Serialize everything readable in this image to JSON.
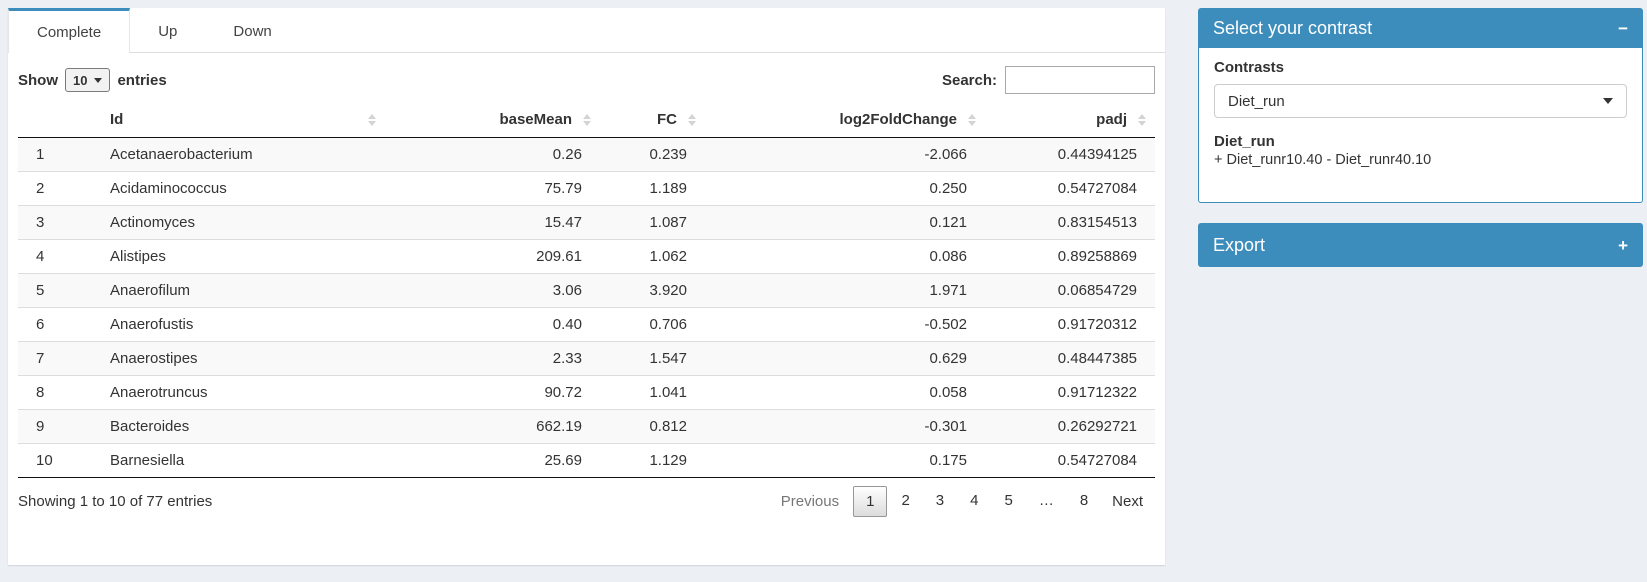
{
  "colors": {
    "accent": "#3d8dbc",
    "page_bg": "#ecf0f5"
  },
  "tabs": [
    {
      "label": "Complete",
      "active": true
    },
    {
      "label": "Up",
      "active": false
    },
    {
      "label": "Down",
      "active": false
    }
  ],
  "table_controls": {
    "show_label": "Show",
    "page_length": "10",
    "entries_label": "entries",
    "search_label": "Search:",
    "search_value": ""
  },
  "table": {
    "columns": [
      {
        "name": "row-number",
        "label": "",
        "align": "c-rownum"
      },
      {
        "name": "id",
        "label": "Id",
        "align": "c-id"
      },
      {
        "name": "basemean",
        "label": "baseMean",
        "align": "c-num"
      },
      {
        "name": "fc",
        "label": "FC",
        "align": "c-num"
      },
      {
        "name": "log2foldchange",
        "label": "log2FoldChange",
        "align": "c-num"
      },
      {
        "name": "padj",
        "label": "padj",
        "align": "c-num"
      }
    ],
    "rows": [
      [
        "1",
        "Acetanaerobacterium",
        "0.26",
        "0.239",
        "-2.066",
        "0.44394125"
      ],
      [
        "2",
        "Acidaminococcus",
        "75.79",
        "1.189",
        "0.250",
        "0.54727084"
      ],
      [
        "3",
        "Actinomyces",
        "15.47",
        "1.087",
        "0.121",
        "0.83154513"
      ],
      [
        "4",
        "Alistipes",
        "209.61",
        "1.062",
        "0.086",
        "0.89258869"
      ],
      [
        "5",
        "Anaerofilum",
        "3.06",
        "3.920",
        "1.971",
        "0.06854729"
      ],
      [
        "6",
        "Anaerofustis",
        "0.40",
        "0.706",
        "-0.502",
        "0.91720312"
      ],
      [
        "7",
        "Anaerostipes",
        "2.33",
        "1.547",
        "0.629",
        "0.48447385"
      ],
      [
        "8",
        "Anaerotruncus",
        "90.72",
        "1.041",
        "0.058",
        "0.91712322"
      ],
      [
        "9",
        "Bacteroides",
        "662.19",
        "0.812",
        "-0.301",
        "0.26292721"
      ],
      [
        "10",
        "Barnesiella",
        "25.69",
        "1.129",
        "0.175",
        "0.54727084"
      ]
    ]
  },
  "footer": {
    "info": "Showing 1 to 10 of 77 entries",
    "pagination": {
      "previous": "Previous",
      "pages": [
        "1",
        "2",
        "3",
        "4",
        "5",
        "…",
        "8"
      ],
      "current": "1",
      "next": "Next"
    }
  },
  "contrast_panel": {
    "title": "Select your contrast",
    "collapse_glyph": "−",
    "contrasts_label": "Contrasts",
    "selected_contrast": "Diet_run",
    "contrast_name": "Diet_run",
    "contrast_formula": "+ Diet_runr10.40 - Diet_runr40.10"
  },
  "export_panel": {
    "title": "Export",
    "expand_glyph": "+"
  }
}
